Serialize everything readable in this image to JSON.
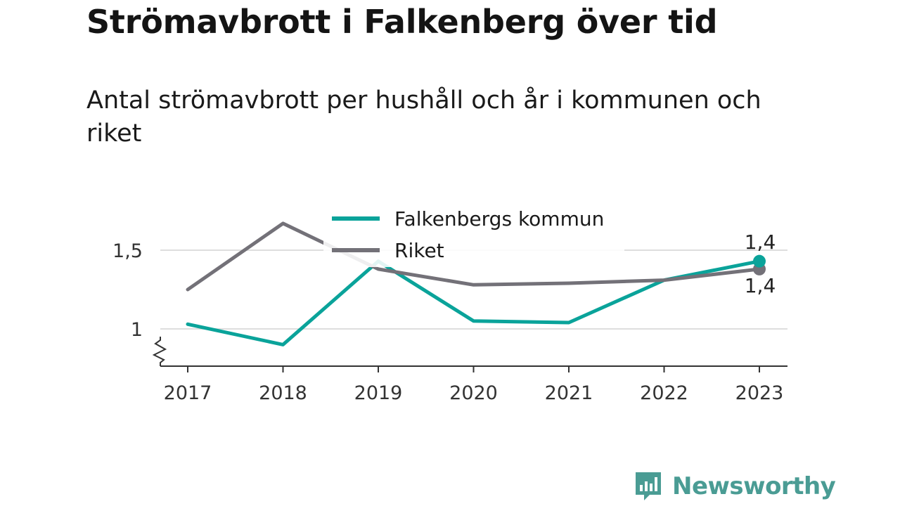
{
  "title": "Strömavbrott i Falkenberg över tid",
  "subtitle": "Antal strömavbrott per hushåll och år i kommunen och riket",
  "brand": {
    "name": "Newsworthy",
    "color": "#4a9c94"
  },
  "chart_data": {
    "type": "line",
    "x": [
      "2017",
      "2018",
      "2019",
      "2020",
      "2021",
      "2022",
      "2023"
    ],
    "series": [
      {
        "name": "Falkenbergs kommun",
        "color": "#0aa39a",
        "values": [
          1.03,
          0.9,
          1.43,
          1.05,
          1.04,
          1.31,
          1.43
        ],
        "end_label": "1,4"
      },
      {
        "name": "Riket",
        "color": "#737178",
        "values": [
          1.25,
          1.67,
          1.38,
          1.28,
          1.29,
          1.31,
          1.38
        ],
        "end_label": "1,4"
      }
    ],
    "y_ticks": [
      {
        "value": 1,
        "label": "1"
      },
      {
        "value": 1.5,
        "label": "1,5"
      }
    ],
    "ylim": [
      0.77,
      1.7
    ],
    "y_axis_break": true,
    "grid": true,
    "legend_position": "top-center"
  }
}
